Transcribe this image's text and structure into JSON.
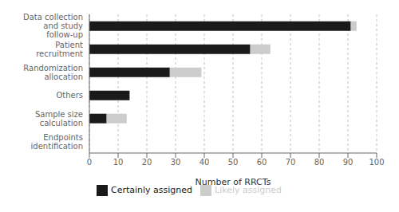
{
  "chart_data": {
    "type": "bar",
    "orientation": "horizontal",
    "stacked": true,
    "categories": [
      "Endpoints\nidentification",
      "Sample size\ncalculation",
      "Others",
      "Randomization\nallocation",
      "Patient\nrecruitment",
      "Data collection\nand study\nfollow-up"
    ],
    "series": [
      {
        "name": "Certainly assigned",
        "color": "#1a1a1a",
        "values": [
          0,
          6,
          14,
          28,
          56,
          91
        ]
      },
      {
        "name": "Likely assigned",
        "color": "#cccccc",
        "values": [
          0,
          7,
          0,
          11,
          7,
          2
        ]
      }
    ],
    "xlabel": "Number of RRCTs",
    "xlim": [
      0,
      100
    ],
    "xticks": [
      0,
      10,
      20,
      30,
      40,
      50,
      60,
      70,
      80,
      90,
      100
    ],
    "grid": true,
    "legend": "bottom"
  }
}
